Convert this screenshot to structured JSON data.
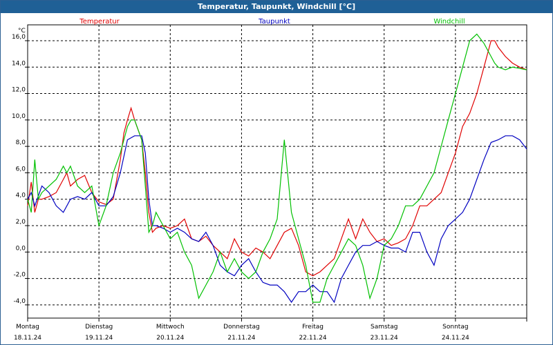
{
  "window": {
    "title": "Temperatur, Taupunkt, Windchill [°C]"
  },
  "chart_data": {
    "type": "line",
    "title": "Temperatur, Taupunkt, Windchill [°C]",
    "ylabel": "°C",
    "xlabel": "",
    "ylim": [
      -5,
      17.2
    ],
    "yticks": [
      -4,
      -2,
      0,
      2,
      4,
      6,
      8,
      10,
      12,
      14,
      16
    ],
    "ytick_labels": [
      "-4,0",
      "-2,0",
      "0,0",
      "2,0",
      "4,0",
      "6,0",
      "8,0",
      "10,0",
      "12,0",
      "14,0",
      "16,0"
    ],
    "xlim": [
      0,
      7
    ],
    "day_labels": [
      {
        "day": "Montag",
        "date": "18.11.24"
      },
      {
        "day": "Dienstag",
        "date": "19.11.24"
      },
      {
        "day": "Mittwoch",
        "date": "20.11.24"
      },
      {
        "day": "Donnerstag",
        "date": "21.11.24"
      },
      {
        "day": "Freitag",
        "date": "22.11.24"
      },
      {
        "day": "Samstag",
        "date": "23.11.24"
      },
      {
        "day": "Sonntag",
        "date": "24.11.24"
      }
    ],
    "grid": true,
    "series": [
      {
        "name": "Temperatur",
        "color": "#e00000",
        "x": [
          0,
          0.05,
          0.1,
          0.15,
          0.2,
          0.3,
          0.4,
          0.5,
          0.55,
          0.6,
          0.7,
          0.8,
          0.9,
          1.0,
          1.1,
          1.2,
          1.3,
          1.35,
          1.4,
          1.45,
          1.5,
          1.6,
          1.65,
          1.7,
          1.75,
          1.8,
          1.9,
          2.0,
          2.1,
          2.2,
          2.3,
          2.4,
          2.5,
          2.6,
          2.7,
          2.8,
          2.9,
          3.0,
          3.1,
          3.2,
          3.3,
          3.4,
          3.5,
          3.6,
          3.7,
          3.8,
          3.9,
          4.0,
          4.1,
          4.2,
          4.3,
          4.4,
          4.5,
          4.6,
          4.7,
          4.8,
          4.9,
          5.0,
          5.1,
          5.2,
          5.3,
          5.4,
          5.5,
          5.6,
          5.7,
          5.8,
          5.9,
          6.0,
          6.1,
          6.2,
          6.3,
          6.4,
          6.5,
          6.55,
          6.6,
          6.7,
          6.8,
          6.9,
          7.0
        ],
        "values": [
          3.5,
          5.3,
          3.0,
          4.0,
          4.0,
          4.2,
          4.5,
          5.5,
          6.0,
          5.0,
          5.5,
          5.8,
          4.5,
          3.8,
          3.6,
          4.0,
          7.0,
          9.0,
          10.0,
          10.9,
          10.0,
          8.5,
          6.0,
          3.0,
          1.5,
          1.8,
          2.0,
          1.8,
          2.0,
          2.5,
          1.0,
          0.8,
          1.2,
          0.5,
          0.0,
          -0.5,
          1.0,
          0.0,
          -0.3,
          0.3,
          0.0,
          -0.5,
          0.5,
          1.5,
          1.8,
          0.5,
          -1.5,
          -1.8,
          -1.5,
          -1.0,
          -0.5,
          1.0,
          2.5,
          1.0,
          2.5,
          1.5,
          0.8,
          1.0,
          0.5,
          0.7,
          1.0,
          2.0,
          3.5,
          3.5,
          4.0,
          4.5,
          6.0,
          7.5,
          9.5,
          10.5,
          12.0,
          14.0,
          16.0,
          16.0,
          15.5,
          14.8,
          14.3,
          14.0,
          13.8
        ]
      },
      {
        "name": "Taupunkt",
        "color": "#0000c0",
        "x": [
          0,
          0.05,
          0.1,
          0.2,
          0.3,
          0.4,
          0.5,
          0.6,
          0.7,
          0.8,
          0.9,
          1.0,
          1.1,
          1.2,
          1.3,
          1.4,
          1.5,
          1.6,
          1.65,
          1.7,
          1.75,
          1.8,
          1.9,
          2.0,
          2.1,
          2.2,
          2.3,
          2.4,
          2.5,
          2.6,
          2.7,
          2.8,
          2.9,
          3.0,
          3.1,
          3.2,
          3.3,
          3.4,
          3.5,
          3.6,
          3.7,
          3.8,
          3.9,
          4.0,
          4.1,
          4.2,
          4.3,
          4.4,
          4.5,
          4.6,
          4.7,
          4.8,
          4.9,
          5.0,
          5.1,
          5.2,
          5.3,
          5.4,
          5.5,
          5.6,
          5.7,
          5.8,
          5.9,
          6.0,
          6.1,
          6.2,
          6.3,
          6.4,
          6.5,
          6.6,
          6.7,
          6.8,
          6.9,
          7.0
        ],
        "values": [
          4.0,
          4.5,
          3.5,
          5.0,
          4.5,
          3.5,
          3.0,
          4.0,
          4.2,
          4.0,
          4.5,
          3.5,
          3.5,
          4.2,
          6.0,
          8.5,
          8.8,
          8.8,
          7.5,
          4.0,
          2.0,
          2.0,
          1.8,
          1.5,
          1.8,
          1.5,
          1.0,
          0.8,
          1.5,
          0.5,
          -1.0,
          -1.5,
          -1.8,
          -1.0,
          -0.5,
          -1.5,
          -2.3,
          -2.5,
          -2.5,
          -3.0,
          -3.8,
          -3.0,
          -3.0,
          -2.5,
          -3.0,
          -3.0,
          -3.8,
          -2.0,
          -1.0,
          0.0,
          0.5,
          0.5,
          0.8,
          0.5,
          0.3,
          0.3,
          0.0,
          1.5,
          1.5,
          0.0,
          -1.0,
          1.0,
          2.0,
          2.5,
          3.0,
          4.0,
          5.5,
          7.0,
          8.3,
          8.5,
          8.8,
          8.8,
          8.5,
          7.8
        ]
      },
      {
        "name": "Windchill",
        "color": "#00c000",
        "x": [
          0,
          0.05,
          0.1,
          0.15,
          0.2,
          0.3,
          0.4,
          0.5,
          0.55,
          0.6,
          0.7,
          0.8,
          0.9,
          1.0,
          1.1,
          1.2,
          1.3,
          1.4,
          1.45,
          1.5,
          1.6,
          1.65,
          1.7,
          1.75,
          1.8,
          1.9,
          2.0,
          2.1,
          2.2,
          2.3,
          2.4,
          2.5,
          2.6,
          2.7,
          2.8,
          2.9,
          3.0,
          3.1,
          3.2,
          3.3,
          3.4,
          3.5,
          3.6,
          3.7,
          3.8,
          3.9,
          4.0,
          4.1,
          4.2,
          4.3,
          4.4,
          4.5,
          4.6,
          4.7,
          4.8,
          4.9,
          5.0,
          5.1,
          5.2,
          5.3,
          5.4,
          5.5,
          5.6,
          5.7,
          5.8,
          5.9,
          6.0,
          6.1,
          6.2,
          6.3,
          6.4,
          6.5,
          6.55,
          6.6,
          6.7,
          6.8,
          6.9,
          7.0
        ],
        "values": [
          4.0,
          3.0,
          7.0,
          4.0,
          4.5,
          5.0,
          5.5,
          6.5,
          6.0,
          6.5,
          5.0,
          4.5,
          5.0,
          2.0,
          3.5,
          6.0,
          7.5,
          9.5,
          10.0,
          10.0,
          8.5,
          5.0,
          1.5,
          2.0,
          3.0,
          2.0,
          1.0,
          1.5,
          0.0,
          -1.0,
          -3.5,
          -2.5,
          -1.5,
          0.0,
          -1.5,
          -0.5,
          -1.5,
          -2.0,
          -1.5,
          0.0,
          1.0,
          2.5,
          8.5,
          3.0,
          1.0,
          -1.0,
          -3.8,
          -3.8,
          -2.0,
          -1.0,
          0.0,
          1.0,
          0.5,
          -1.0,
          -3.5,
          -2.0,
          0.5,
          1.0,
          2.0,
          3.5,
          3.5,
          4.0,
          5.0,
          6.0,
          8.0,
          10.0,
          12.0,
          14.0,
          16.0,
          16.5,
          15.8,
          14.8,
          14.3,
          14.0,
          13.8,
          14.0,
          13.9,
          13.8
        ]
      }
    ]
  }
}
